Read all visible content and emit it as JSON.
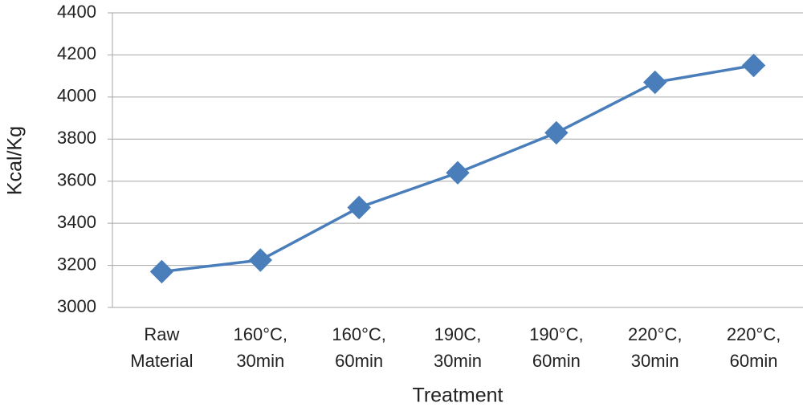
{
  "chart_data": {
    "type": "line",
    "y_label": "Kcal/Kg",
    "x_label": "Treatment",
    "categories": [
      [
        "Raw",
        "Material"
      ],
      [
        "160°C,",
        "30min"
      ],
      [
        "160°C,",
        "60min"
      ],
      [
        "190C,",
        "30min"
      ],
      [
        "190°C,",
        "60min"
      ],
      [
        "220°C,",
        "30min"
      ],
      [
        "220°C,",
        "60min"
      ]
    ],
    "series": [
      {
        "name": "Kcal/Kg",
        "color": "#4a7ebb",
        "values": [
          3170,
          3225,
          3475,
          3640,
          3830,
          4070,
          4150
        ]
      }
    ],
    "ylim": [
      3000,
      4400
    ],
    "yticks": [
      3000,
      3200,
      3400,
      3600,
      3800,
      4000,
      4200,
      4400
    ],
    "grid": true
  }
}
